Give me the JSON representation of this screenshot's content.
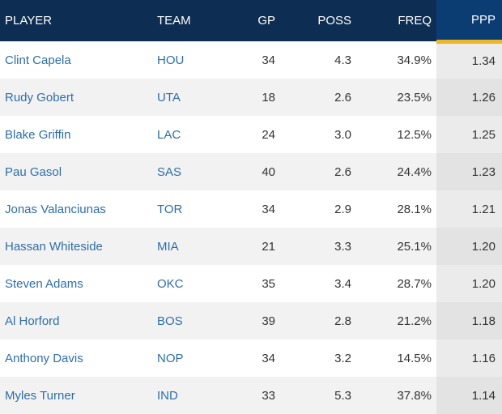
{
  "columns": {
    "player": "PLAYER",
    "team": "TEAM",
    "gp": "GP",
    "poss": "POSS",
    "freq": "FREQ",
    "ppp": "PPP"
  },
  "sorted_column": "PPP",
  "colors": {
    "header_bg": "#0d2d52",
    "sorted_header_bg": "#0b3c72",
    "sort_accent": "#f0b629",
    "link": "#2f6ea8"
  },
  "rows": [
    {
      "player": "Clint Capela",
      "team": "HOU",
      "gp": "34",
      "poss": "4.3",
      "freq": "34.9%",
      "ppp": "1.34"
    },
    {
      "player": "Rudy Gobert",
      "team": "UTA",
      "gp": "18",
      "poss": "2.6",
      "freq": "23.5%",
      "ppp": "1.26"
    },
    {
      "player": "Blake Griffin",
      "team": "LAC",
      "gp": "24",
      "poss": "3.0",
      "freq": "12.5%",
      "ppp": "1.25"
    },
    {
      "player": "Pau Gasol",
      "team": "SAS",
      "gp": "40",
      "poss": "2.6",
      "freq": "24.4%",
      "ppp": "1.23"
    },
    {
      "player": "Jonas Valanciunas",
      "team": "TOR",
      "gp": "34",
      "poss": "2.9",
      "freq": "28.1%",
      "ppp": "1.21"
    },
    {
      "player": "Hassan Whiteside",
      "team": "MIA",
      "gp": "21",
      "poss": "3.3",
      "freq": "25.1%",
      "ppp": "1.20"
    },
    {
      "player": "Steven Adams",
      "team": "OKC",
      "gp": "35",
      "poss": "3.4",
      "freq": "28.7%",
      "ppp": "1.20"
    },
    {
      "player": "Al Horford",
      "team": "BOS",
      "gp": "39",
      "poss": "2.8",
      "freq": "21.2%",
      "ppp": "1.18"
    },
    {
      "player": "Anthony Davis",
      "team": "NOP",
      "gp": "34",
      "poss": "3.2",
      "freq": "14.5%",
      "ppp": "1.16"
    },
    {
      "player": "Myles Turner",
      "team": "IND",
      "gp": "33",
      "poss": "5.3",
      "freq": "37.8%",
      "ppp": "1.14"
    }
  ]
}
